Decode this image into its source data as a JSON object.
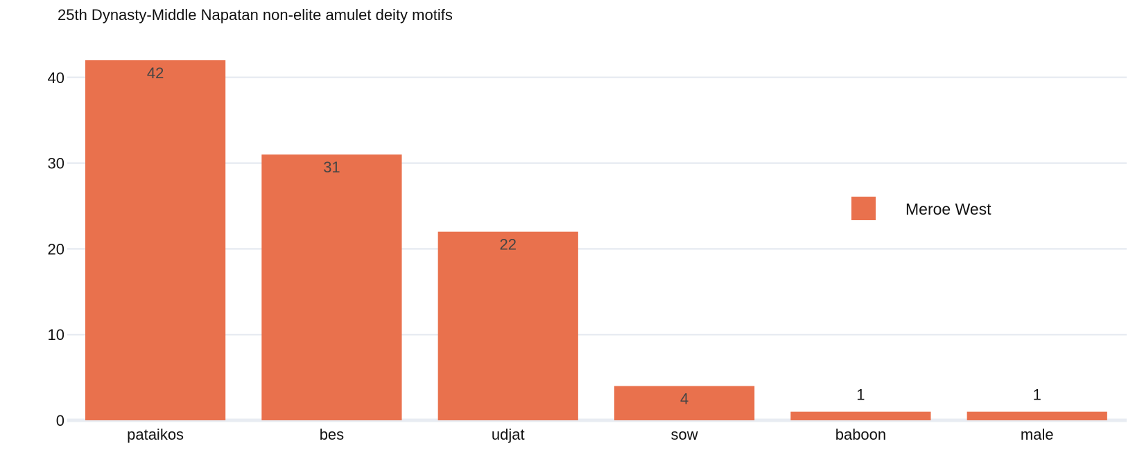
{
  "chart_data": {
    "type": "bar",
    "title": "25th Dynasty-Middle Napatan non-elite amulet deity motifs",
    "xlabel": "",
    "ylabel": "",
    "categories": [
      "pataikos",
      "bes",
      "udjat",
      "sow",
      "baboon",
      "male"
    ],
    "series": [
      {
        "name": "Meroe West",
        "values": [
          42,
          31,
          22,
          4,
          1,
          1
        ],
        "color": "#e9714d"
      }
    ],
    "ylim": [
      0,
      42
    ],
    "yticks": [
      0,
      10,
      20,
      30,
      40
    ],
    "grid": true,
    "legend": "right",
    "colors": {
      "bar": "#e9714d",
      "grid": "#e8ecf2",
      "label_inside": "#444444",
      "label_outside": "#111111"
    }
  }
}
